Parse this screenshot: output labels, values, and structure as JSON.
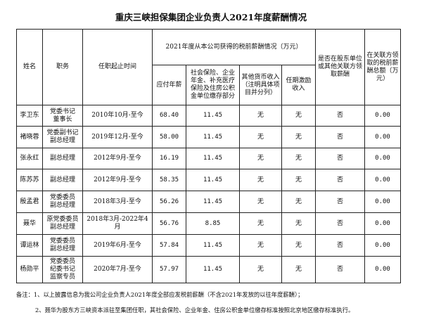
{
  "title": "重庆三峡担保集团企业负责人2021年度薪酬情况",
  "headers": {
    "name": "姓名",
    "position": "职务",
    "term": "任职起止时间",
    "group": "2021年度从本公司获得的税前薪酬情况（万元）",
    "annual_salary": "应付年薪",
    "social_insurance": "社会保险、企业年金、补充医疗保险及住房公积金单位缴存部分",
    "other_income": "其他货币收入（注明具体项目并分列）",
    "incentive": "任期激励收入",
    "related_flag": "是否在股东单位或其他关联方领取薪酬",
    "related_amount": "在关联方领取的税前薪酬总额（万元）"
  },
  "rows": [
    {
      "name": "李卫东",
      "position": [
        "党委书记",
        "董事长"
      ],
      "term": "2010年10月-至今",
      "salary": "68.40",
      "social": "11.45",
      "other": "无",
      "incentive": "无",
      "related": "否",
      "related_amount": "0.00"
    },
    {
      "name": "褚晓蓉",
      "position": [
        "党委副书记",
        "副总经理"
      ],
      "term": "2019年12月-至今",
      "salary": "58.00",
      "social": "11.45",
      "other": "无",
      "incentive": "无",
      "related": "否",
      "related_amount": "0.00"
    },
    {
      "name": "张永红",
      "position": [
        "副总经理"
      ],
      "term": "2012年9月-至今",
      "salary": "16.19",
      "social": "11.45",
      "other": "无",
      "incentive": "无",
      "related": "否",
      "related_amount": "0.00"
    },
    {
      "name": "陈苏苏",
      "position": [
        "副总经理"
      ],
      "term": "2012年9月-至今",
      "salary": "58.35",
      "social": "11.45",
      "other": "无",
      "incentive": "无",
      "related": "否",
      "related_amount": "0.00"
    },
    {
      "name": "殷孟君",
      "position": [
        "党委委员",
        "副总经理"
      ],
      "term": "2018年3月-至今",
      "salary": "56.26",
      "social": "11.45",
      "other": "无",
      "incentive": "无",
      "related": "否",
      "related_amount": "0.00"
    },
    {
      "name": "聂华",
      "position": [
        "原党委委员",
        "副总经理"
      ],
      "term": "2018年3月-2022年4月",
      "salary": "56.76",
      "social": "8.85",
      "other": "无",
      "incentive": "无",
      "related": "否",
      "related_amount": "0.00"
    },
    {
      "name": "谭运林",
      "position": [
        "党委委员",
        "副总经理"
      ],
      "term": "2019年6月-至今",
      "salary": "57.84",
      "social": "11.45",
      "other": "无",
      "incentive": "无",
      "related": "否",
      "related_amount": "0.00"
    },
    {
      "name": "杨勋平",
      "position": [
        "党委委员",
        "纪委书记",
        "监察专员"
      ],
      "term": "2020年7月-至今",
      "salary": "57.97",
      "social": "11.45",
      "other": "无",
      "incentive": "无",
      "related": "否",
      "related_amount": "0.00"
    }
  ],
  "notes": {
    "line1": "备注：1、以上披露信息为我公司企业负责人2021年度全部应发税前薪酬（不含2021年发放的以往年度薪酬）；",
    "line2": "2、聂华为股东方三峡资本派驻至集团任职，其社会保险、企业年金、住房公积金单位缴存标准按照北京地区缴存标准执行。"
  }
}
